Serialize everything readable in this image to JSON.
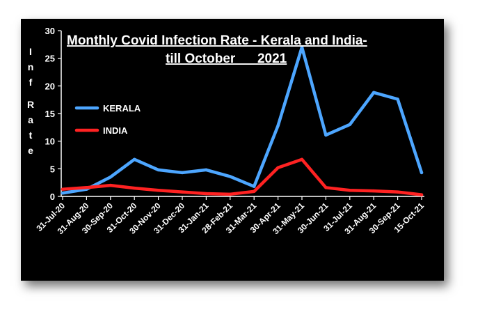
{
  "chart_data": {
    "type": "line",
    "title_line1": "Monthly Covid Infection Rate - Kerala and India-",
    "title_line2": "till October      2021",
    "ylabel": "Inf Rate",
    "ylim": [
      0,
      30
    ],
    "yticks": [
      "0",
      "5",
      "10",
      "15",
      "20",
      "25",
      "30"
    ],
    "legend_position": "left-middle",
    "categories": [
      "31-Jul-20",
      "31-Aug-20",
      "30-Sep-20",
      "31-Oct-20",
      "30-Nov-20",
      "31-Dec-20",
      "31-Jan-21",
      "28-Feb-21",
      "31-Mar-21",
      "30-Apr-21",
      "31-May-21",
      "30-Jun-21",
      "31-Jul-21",
      "31-Aug-21",
      "30-Sep-21",
      "15-Oct-21"
    ],
    "series": [
      {
        "name": "KERALA",
        "color": "#4da6ff",
        "values": [
          0.6,
          1.3,
          3.5,
          6.7,
          4.8,
          4.3,
          4.8,
          3.6,
          1.8,
          12.8,
          27.0,
          11.1,
          13.0,
          18.8,
          17.6,
          4.3
        ]
      },
      {
        "name": "INDIA",
        "color": "#ff2222",
        "values": [
          1.3,
          1.6,
          2.0,
          1.5,
          1.1,
          0.8,
          0.5,
          0.4,
          0.9,
          5.2,
          6.7,
          1.6,
          1.1,
          1.0,
          0.8,
          0.3
        ]
      }
    ]
  }
}
